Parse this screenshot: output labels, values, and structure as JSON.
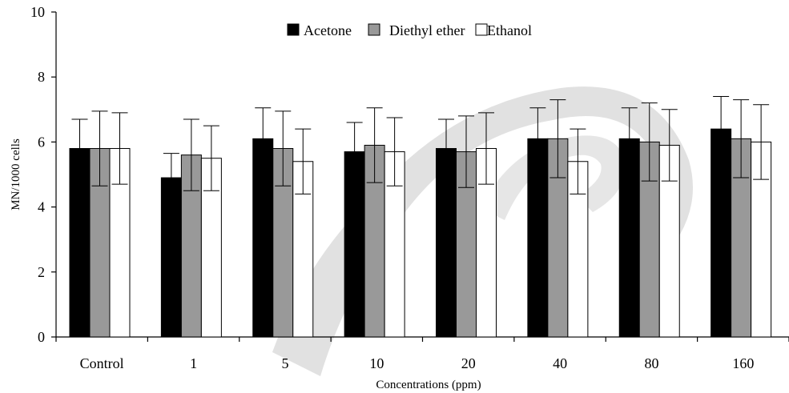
{
  "chart_data": {
    "type": "bar",
    "xlabel": "Concentrations (ppm)",
    "ylabel": "MN/1000 cells",
    "ylim": [
      0,
      10
    ],
    "yticks": [
      0,
      2,
      4,
      6,
      8,
      10
    ],
    "grid": false,
    "legend_position": "top-center",
    "categories": [
      "Control",
      "1",
      "5",
      "10",
      "20",
      "40",
      "80",
      "160"
    ],
    "series": [
      {
        "name": "Acetone",
        "color": "#000000",
        "values": [
          5.8,
          4.9,
          6.1,
          5.7,
          5.8,
          6.1,
          6.1,
          6.4
        ],
        "error": [
          0.9,
          0.75,
          0.95,
          0.9,
          0.9,
          0.95,
          0.95,
          1.0
        ]
      },
      {
        "name": "Diethyl ether",
        "color": "#999999",
        "values": [
          5.8,
          5.6,
          5.8,
          5.9,
          5.7,
          6.1,
          6.0,
          6.1
        ],
        "error": [
          1.15,
          1.1,
          1.15,
          1.15,
          1.1,
          1.2,
          1.2,
          1.2
        ]
      },
      {
        "name": "Ethanol",
        "color": "#ffffff",
        "values": [
          5.8,
          5.5,
          5.4,
          5.7,
          5.8,
          5.4,
          5.9,
          6.0
        ],
        "error": [
          1.1,
          1.0,
          1.0,
          1.05,
          1.1,
          1.0,
          1.1,
          1.15
        ]
      }
    ]
  }
}
